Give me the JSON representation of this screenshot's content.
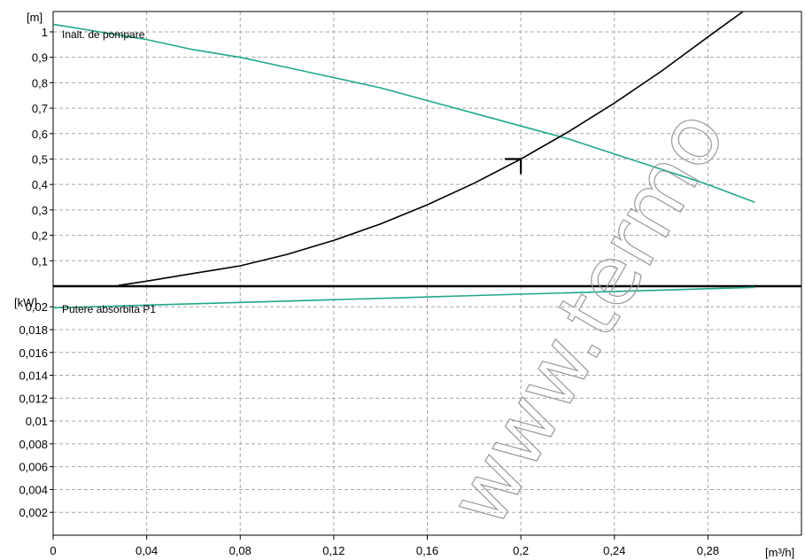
{
  "watermark": "www.termo",
  "chart_data": [
    {
      "type": "line",
      "title": "Inalt. de pompare",
      "ylabel": "[m]",
      "xlabel": "[m³/h]",
      "xlim": [
        0,
        0.32
      ],
      "ylim": [
        0,
        1.08
      ],
      "grid": true,
      "y_ticks": [
        {
          "v": 0.1,
          "t": "0,1"
        },
        {
          "v": 0.2,
          "t": "0,2"
        },
        {
          "v": 0.3,
          "t": "0,3"
        },
        {
          "v": 0.4,
          "t": "0,4"
        },
        {
          "v": 0.5,
          "t": "0,5"
        },
        {
          "v": 0.6,
          "t": "0,6"
        },
        {
          "v": 0.7,
          "t": "0,7"
        },
        {
          "v": 0.8,
          "t": "0,8"
        },
        {
          "v": 0.9,
          "t": "0,9"
        },
        {
          "v": 1.0,
          "t": "1"
        }
      ],
      "series": [
        {
          "color": "#1fa88a",
          "x": [
            0,
            0.02,
            0.04,
            0.06,
            0.08,
            0.1,
            0.12,
            0.14,
            0.16,
            0.18,
            0.2,
            0.22,
            0.24,
            0.26,
            0.28,
            0.3
          ],
          "y": [
            1.03,
            1.0,
            0.97,
            0.93,
            0.9,
            0.86,
            0.82,
            0.78,
            0.73,
            0.68,
            0.63,
            0.58,
            0.52,
            0.46,
            0.4,
            0.33
          ]
        },
        {
          "color": "#000000",
          "x": [
            0.028,
            0.04,
            0.06,
            0.08,
            0.1,
            0.12,
            0.14,
            0.16,
            0.18,
            0.2,
            0.22,
            0.24,
            0.26,
            0.28,
            0.295
          ],
          "y": [
            0.003,
            0.02,
            0.05,
            0.08,
            0.125,
            0.18,
            0.245,
            0.32,
            0.405,
            0.5,
            0.605,
            0.72,
            0.845,
            0.98,
            1.08
          ]
        }
      ],
      "marker": {
        "x": 0.2,
        "y": 0.5
      }
    },
    {
      "type": "line",
      "title": "Putere absorbita P1",
      "ylabel": "[kW]",
      "xlabel": "[m³/h]",
      "xlim": [
        0,
        0.32
      ],
      "ylim": [
        0,
        0.0218
      ],
      "grid": true,
      "y_ticks": [
        {
          "v": 0.002,
          "t": "0,002"
        },
        {
          "v": 0.004,
          "t": "0,004"
        },
        {
          "v": 0.006,
          "t": "0,006"
        },
        {
          "v": 0.008,
          "t": "0,008"
        },
        {
          "v": 0.01,
          "t": "0,01"
        },
        {
          "v": 0.012,
          "t": "0,012"
        },
        {
          "v": 0.014,
          "t": "0,014"
        },
        {
          "v": 0.016,
          "t": "0,016"
        },
        {
          "v": 0.018,
          "t": "0,018"
        },
        {
          "v": 0.02,
          "t": "0,02"
        }
      ],
      "x_ticks": [
        {
          "v": 0,
          "t": "0"
        },
        {
          "v": 0.04,
          "t": "0,04"
        },
        {
          "v": 0.08,
          "t": "0,08"
        },
        {
          "v": 0.12,
          "t": "0,12"
        },
        {
          "v": 0.16,
          "t": "0,16"
        },
        {
          "v": 0.2,
          "t": "0,2"
        },
        {
          "v": 0.24,
          "t": "0,24"
        },
        {
          "v": 0.28,
          "t": "0,28"
        }
      ],
      "series": [
        {
          "color": "#1fa88a",
          "x": [
            0,
            0.05,
            0.1,
            0.15,
            0.2,
            0.25,
            0.3
          ],
          "y": [
            0.0199,
            0.0202,
            0.0205,
            0.0208,
            0.0211,
            0.0214,
            0.0217
          ]
        }
      ]
    }
  ]
}
